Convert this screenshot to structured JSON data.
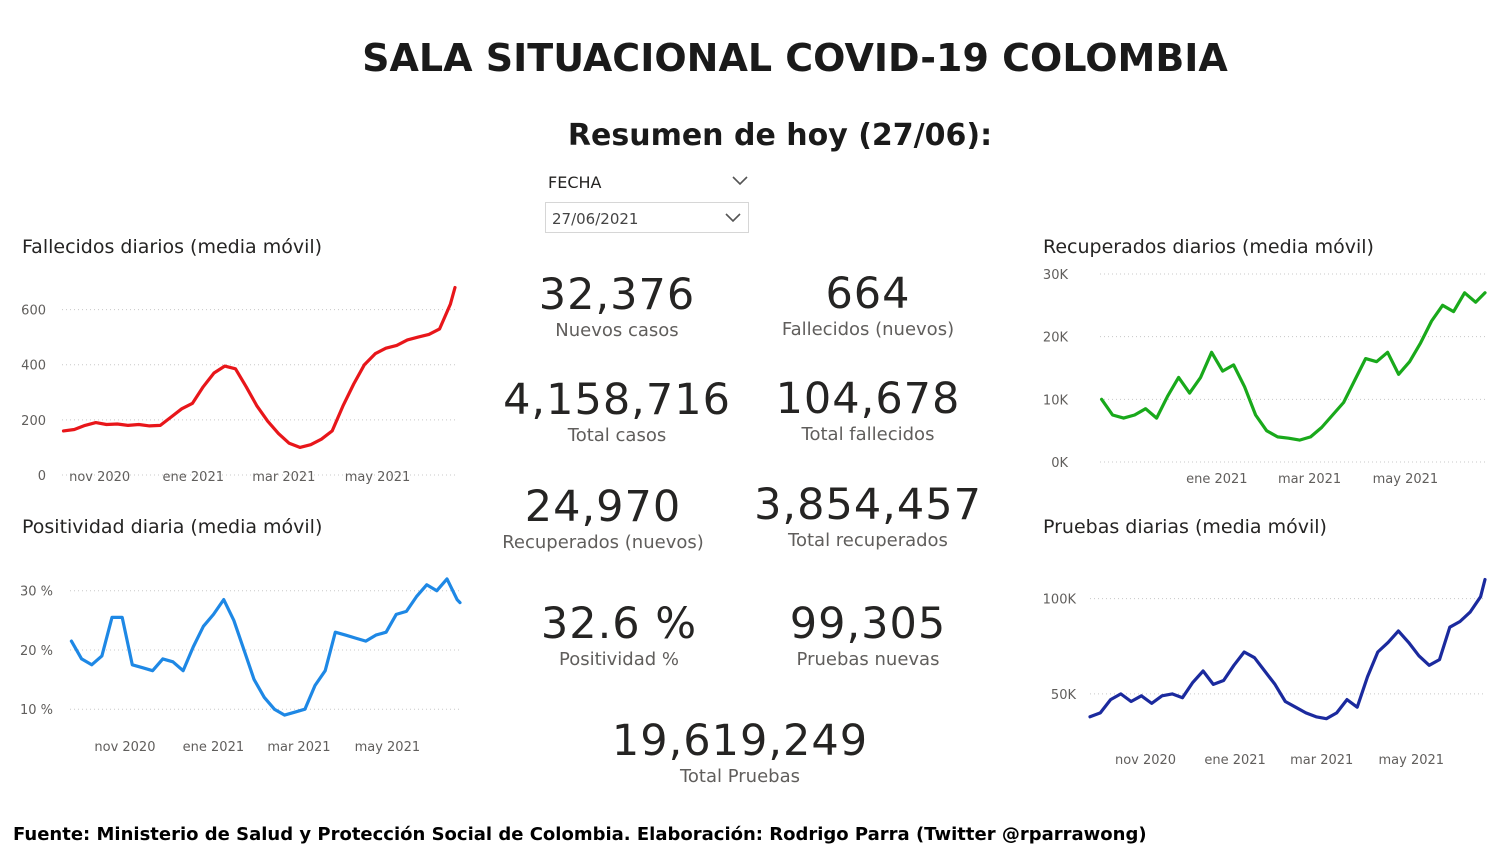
{
  "header": {
    "title": "SALA SITUACIONAL COVID-19 COLOMBIA",
    "summary_title": "Resumen de hoy (27/06):"
  },
  "slicer": {
    "label": "FECHA",
    "selected": "27/06/2021",
    "icons": {
      "header": "chevron-down-icon",
      "dropdown": "chevron-down-icon"
    }
  },
  "kpis": [
    {
      "id": "nuevos-casos",
      "value": "32,376",
      "label": "Nuevos casos"
    },
    {
      "id": "fallecidos-nuevos",
      "value": "664",
      "label": "Fallecidos (nuevos)"
    },
    {
      "id": "total-casos",
      "value": "4,158,716",
      "label": "Total casos"
    },
    {
      "id": "total-fallecidos",
      "value": "104,678",
      "label": "Total fallecidos"
    },
    {
      "id": "recuperados-nuevos",
      "value": "24,970",
      "label": "Recuperados (nuevos)"
    },
    {
      "id": "total-recuperados",
      "value": "3,854,457",
      "label": "Total recuperados"
    },
    {
      "id": "positividad",
      "value": "32.6 %",
      "label": "Positividad %"
    },
    {
      "id": "pruebas-nuevas",
      "value": "99,305",
      "label": "Pruebas nuevas"
    },
    {
      "id": "total-pruebas",
      "value": "19,619,249",
      "label": "Total Pruebas"
    }
  ],
  "chart_data": [
    {
      "id": "fallecidos",
      "type": "line",
      "title": "Fallecidos diarios (media móvil)",
      "color": "#e8161a",
      "grid": true,
      "xlim": [
        "2020-10-14",
        "2021-06-27"
      ],
      "ylim": [
        0,
        700
      ],
      "yticks": [
        0,
        200,
        400,
        600
      ],
      "ytick_labels": [
        "0",
        "200",
        "400",
        "600"
      ],
      "xticks": [
        "2020-11-01",
        "2021-01-01",
        "2021-03-01",
        "2021-05-01"
      ],
      "xtick_labels": [
        "nov 2020",
        "ene 2021",
        "mar 2021",
        "may 2021"
      ],
      "x": [
        "2020-10-15",
        "2020-10-22",
        "2020-10-29",
        "2020-11-05",
        "2020-11-12",
        "2020-11-19",
        "2020-11-26",
        "2020-12-03",
        "2020-12-10",
        "2020-12-17",
        "2020-12-24",
        "2020-12-31",
        "2021-01-07",
        "2021-01-14",
        "2021-01-21",
        "2021-01-28",
        "2021-02-04",
        "2021-02-11",
        "2021-02-18",
        "2021-02-25",
        "2021-03-04",
        "2021-03-11",
        "2021-03-18",
        "2021-03-25",
        "2021-04-01",
        "2021-04-08",
        "2021-04-15",
        "2021-04-22",
        "2021-04-29",
        "2021-05-06",
        "2021-05-13",
        "2021-05-20",
        "2021-05-27",
        "2021-06-03",
        "2021-06-10",
        "2021-06-17",
        "2021-06-24",
        "2021-06-27"
      ],
      "values": [
        160,
        165,
        180,
        190,
        183,
        185,
        180,
        183,
        178,
        180,
        210,
        240,
        260,
        320,
        370,
        395,
        385,
        320,
        250,
        195,
        150,
        115,
        100,
        110,
        130,
        160,
        250,
        330,
        400,
        440,
        460,
        470,
        490,
        500,
        510,
        530,
        620,
        680
      ]
    },
    {
      "id": "positividad",
      "type": "line",
      "title": "Positividad diaria (media móvil)",
      "color": "#1e88e5",
      "grid": true,
      "xlim": [
        "2020-10-01",
        "2021-06-27"
      ],
      "ylim": [
        7,
        34
      ],
      "yticks": [
        10,
        20,
        30
      ],
      "ytick_labels": [
        "10 %",
        "20 %",
        "30 %"
      ],
      "xticks": [
        "2020-11-01",
        "2021-01-01",
        "2021-03-01",
        "2021-05-01"
      ],
      "xtick_labels": [
        "nov 2020",
        "ene 2021",
        "mar 2021",
        "may 2021"
      ],
      "x": [
        "2020-10-02",
        "2020-10-09",
        "2020-10-16",
        "2020-10-23",
        "2020-10-30",
        "2020-11-06",
        "2020-11-13",
        "2020-11-20",
        "2020-11-27",
        "2020-12-04",
        "2020-12-11",
        "2020-12-18",
        "2020-12-25",
        "2021-01-01",
        "2021-01-08",
        "2021-01-15",
        "2021-01-22",
        "2021-01-29",
        "2021-02-05",
        "2021-02-12",
        "2021-02-19",
        "2021-02-26",
        "2021-03-05",
        "2021-03-12",
        "2021-03-19",
        "2021-03-26",
        "2021-04-02",
        "2021-04-09",
        "2021-04-16",
        "2021-04-23",
        "2021-04-30",
        "2021-05-07",
        "2021-05-14",
        "2021-05-21",
        "2021-05-28",
        "2021-06-04",
        "2021-06-11",
        "2021-06-18",
        "2021-06-25",
        "2021-06-27"
      ],
      "values": [
        21.5,
        18.5,
        17.5,
        19,
        25.5,
        25.5,
        17.5,
        17,
        16.5,
        18.5,
        18,
        16.5,
        20.5,
        24,
        26,
        28.5,
        25,
        20,
        15,
        12,
        10,
        9,
        9.5,
        10,
        14,
        16.5,
        23,
        22.5,
        22,
        21.5,
        22.5,
        23,
        26,
        26.5,
        29,
        31,
        30,
        32,
        28.5,
        28
      ]
    },
    {
      "id": "recuperados",
      "type": "line",
      "title": "Recuperados diarios (media móvil)",
      "color": "#19a91b",
      "grid": true,
      "xlim": [
        "2020-10-25",
        "2021-06-27"
      ],
      "ylim": [
        0,
        30000
      ],
      "yticks": [
        0,
        10000,
        20000,
        30000
      ],
      "ytick_labels": [
        "0K",
        "10K",
        "20K",
        "30K"
      ],
      "xticks": [
        "2021-01-01",
        "2021-03-01",
        "2021-05-01"
      ],
      "xtick_labels": [
        "ene 2021",
        "mar 2021",
        "may 2021"
      ],
      "x": [
        "2020-10-26",
        "2020-11-02",
        "2020-11-09",
        "2020-11-16",
        "2020-11-23",
        "2020-11-30",
        "2020-12-07",
        "2020-12-14",
        "2020-12-21",
        "2020-12-28",
        "2021-01-04",
        "2021-01-11",
        "2021-01-18",
        "2021-01-25",
        "2021-02-01",
        "2021-02-08",
        "2021-02-15",
        "2021-02-22",
        "2021-03-01",
        "2021-03-08",
        "2021-03-15",
        "2021-03-22",
        "2021-03-29",
        "2021-04-05",
        "2021-04-12",
        "2021-04-19",
        "2021-04-26",
        "2021-05-03",
        "2021-05-10",
        "2021-05-17",
        "2021-05-24",
        "2021-05-31",
        "2021-06-07",
        "2021-06-14",
        "2021-06-21",
        "2021-06-27"
      ],
      "values": [
        10000,
        7500,
        7000,
        7500,
        8500,
        7000,
        10500,
        13500,
        11000,
        13500,
        17500,
        14500,
        15500,
        12000,
        7500,
        5000,
        4000,
        3800,
        3500,
        4000,
        5500,
        7500,
        9500,
        13000,
        16500,
        16000,
        17500,
        14000,
        16000,
        19000,
        22500,
        25000,
        24000,
        27000,
        25500,
        27000
      ]
    },
    {
      "id": "pruebas",
      "type": "line",
      "title": "Pruebas diarias (media móvil)",
      "color": "#1b2a9e",
      "grid": true,
      "xlim": [
        "2020-10-01",
        "2021-06-27"
      ],
      "ylim": [
        30000,
        115000
      ],
      "yticks": [
        50000,
        100000
      ],
      "ytick_labels": [
        "50K",
        "100K"
      ],
      "xticks": [
        "2020-11-01",
        "2021-01-01",
        "2021-03-01",
        "2021-05-01"
      ],
      "xtick_labels": [
        "nov 2020",
        "ene 2021",
        "mar 2021",
        "may 2021"
      ],
      "x": [
        "2020-10-01",
        "2020-10-08",
        "2020-10-15",
        "2020-10-22",
        "2020-10-29",
        "2020-11-05",
        "2020-11-12",
        "2020-11-19",
        "2020-11-26",
        "2020-12-03",
        "2020-12-10",
        "2020-12-17",
        "2020-12-24",
        "2020-12-31",
        "2021-01-07",
        "2021-01-14",
        "2021-01-21",
        "2021-01-28",
        "2021-02-04",
        "2021-02-11",
        "2021-02-18",
        "2021-02-25",
        "2021-03-04",
        "2021-03-11",
        "2021-03-18",
        "2021-03-25",
        "2021-04-01",
        "2021-04-08",
        "2021-04-15",
        "2021-04-22",
        "2021-04-29",
        "2021-05-06",
        "2021-05-13",
        "2021-05-20",
        "2021-05-27",
        "2021-06-03",
        "2021-06-10",
        "2021-06-17",
        "2021-06-24",
        "2021-06-27"
      ],
      "values": [
        38000,
        40000,
        47000,
        50000,
        46000,
        49000,
        45000,
        49000,
        50000,
        48000,
        56000,
        62000,
        55000,
        57000,
        65000,
        72000,
        69000,
        62000,
        55000,
        46000,
        43000,
        40000,
        38000,
        37000,
        40000,
        47000,
        43000,
        59000,
        72000,
        77000,
        83000,
        77000,
        70000,
        65000,
        68000,
        85000,
        88000,
        93000,
        101000,
        110000
      ]
    }
  ],
  "footer": {
    "text": "Fuente: Ministerio de Salud y Protección Social de Colombia. Elaboración: Rodrigo Parra (Twitter @rparrawong)"
  }
}
